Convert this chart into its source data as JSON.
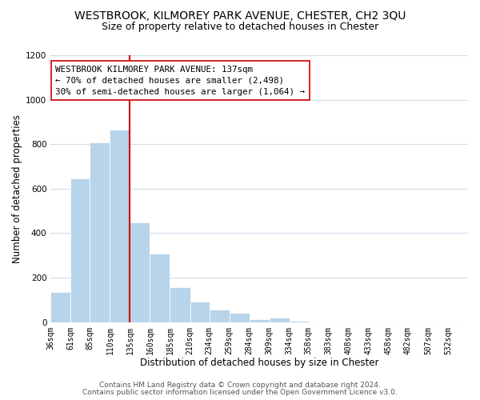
{
  "title": "WESTBROOK, KILMOREY PARK AVENUE, CHESTER, CH2 3QU",
  "subtitle": "Size of property relative to detached houses in Chester",
  "xlabel": "Distribution of detached houses by size in Chester",
  "ylabel": "Number of detached properties",
  "bar_left_edges": [
    36,
    61,
    85,
    110,
    135,
    160,
    185,
    210,
    234,
    259,
    284,
    309,
    334,
    358,
    383,
    408,
    433,
    458,
    482,
    507
  ],
  "bar_widths": [
    25,
    24,
    25,
    25,
    25,
    25,
    25,
    24,
    25,
    25,
    25,
    25,
    24,
    25,
    25,
    25,
    25,
    24,
    25,
    25
  ],
  "bar_heights": [
    135,
    645,
    808,
    865,
    447,
    308,
    157,
    93,
    55,
    43,
    15,
    22,
    5,
    2,
    0,
    0,
    0,
    2,
    0,
    3
  ],
  "tick_labels": [
    "36sqm",
    "61sqm",
    "85sqm",
    "110sqm",
    "135sqm",
    "160sqm",
    "185sqm",
    "210sqm",
    "234sqm",
    "259sqm",
    "284sqm",
    "309sqm",
    "334sqm",
    "358sqm",
    "383sqm",
    "408sqm",
    "433sqm",
    "458sqm",
    "482sqm",
    "507sqm",
    "532sqm"
  ],
  "tick_positions": [
    36,
    61,
    85,
    110,
    135,
    160,
    185,
    210,
    234,
    259,
    284,
    309,
    334,
    358,
    383,
    408,
    433,
    458,
    482,
    507,
    532
  ],
  "bar_color": "#b8d4ea",
  "bar_edge_color": "#ffffff",
  "marker_line_x": 135,
  "marker_line_color": "#cc0000",
  "ylim": [
    0,
    1200
  ],
  "xlim": [
    36,
    557
  ],
  "annotation_text": "WESTBROOK KILMOREY PARK AVENUE: 137sqm\n← 70% of detached houses are smaller (2,498)\n30% of semi-detached houses are larger (1,064) →",
  "annotation_box_color": "#ffffff",
  "annotation_box_edge": "#cc0000",
  "footer1": "Contains HM Land Registry data © Crown copyright and database right 2024.",
  "footer2": "Contains public sector information licensed under the Open Government Licence v3.0.",
  "bg_color": "#ffffff",
  "grid_color": "#d0dcea",
  "title_fontsize": 10,
  "subtitle_fontsize": 9,
  "axis_label_fontsize": 8.5,
  "tick_fontsize": 7,
  "annotation_fontsize": 7.8,
  "footer_fontsize": 6.5
}
